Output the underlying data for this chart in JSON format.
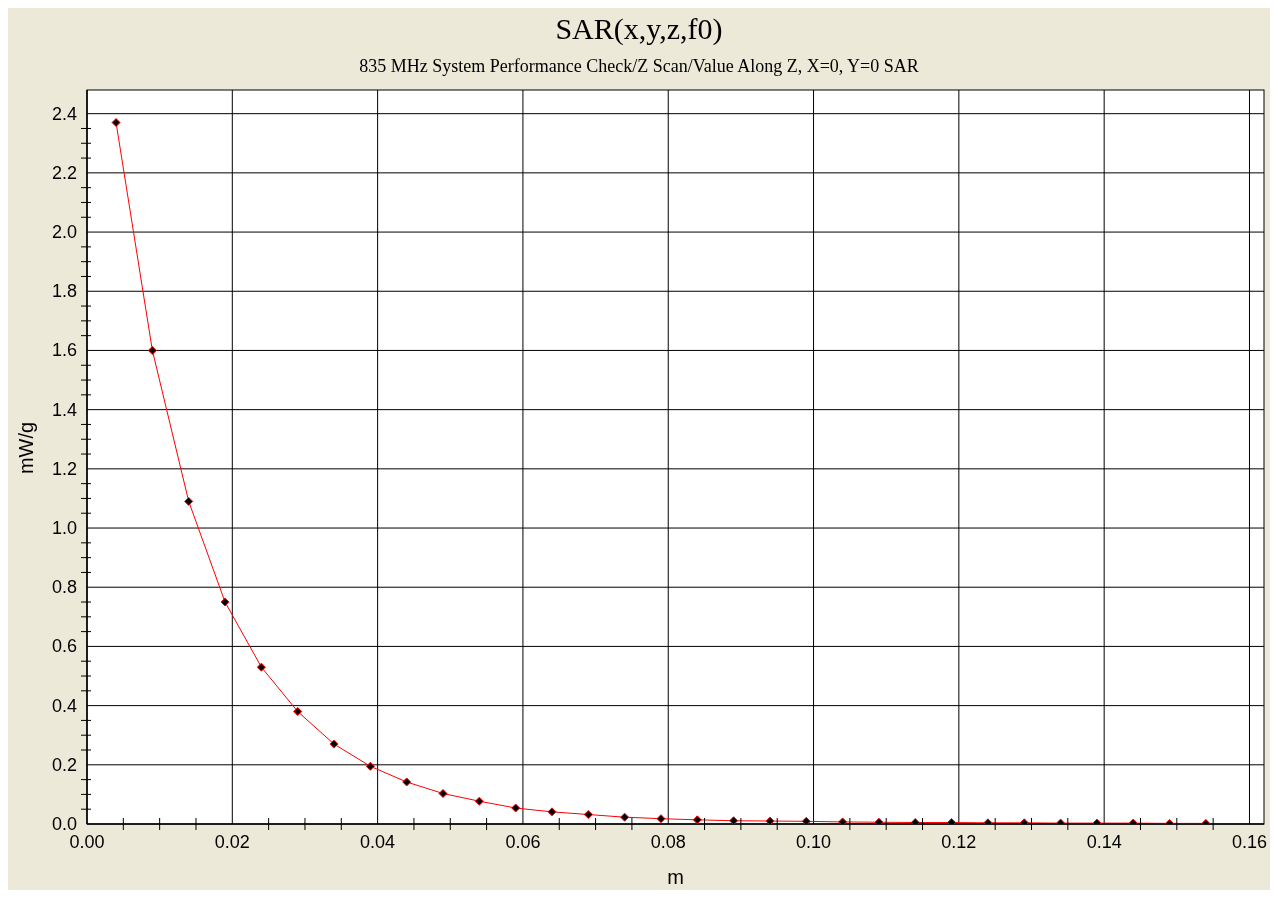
{
  "chart_data": {
    "type": "line",
    "title": "SAR(x,y,z,f0)",
    "subtitle": "835 MHz System Performance Check/Z Scan/Value Along Z, X=0, Y=0 SAR",
    "xlabel": "m",
    "ylabel": "mW/g",
    "x": [
      0.004,
      0.009,
      0.014,
      0.019,
      0.024,
      0.029,
      0.034,
      0.039,
      0.044,
      0.049,
      0.054,
      0.059,
      0.064,
      0.069,
      0.074,
      0.079,
      0.084,
      0.089,
      0.094,
      0.099,
      0.104,
      0.109,
      0.114,
      0.119,
      0.124,
      0.129,
      0.134,
      0.139,
      0.144,
      0.149,
      0.154
    ],
    "series": [
      {
        "color": "#ff0000",
        "values": [
          2.37,
          1.6,
          1.09,
          0.75,
          0.53,
          0.38,
          0.27,
          0.195,
          0.142,
          0.103,
          0.077,
          0.054,
          0.041,
          0.032,
          0.023,
          0.018,
          0.014,
          0.011,
          0.01,
          0.009,
          0.007,
          0.006,
          0.005,
          0.005,
          0.004,
          0.004,
          0.003,
          0.003,
          0.003,
          0.002,
          0.002
        ]
      }
    ],
    "xlim": [
      0,
      0.162
    ],
    "ylim": [
      0,
      2.48
    ],
    "xticks": [
      {
        "value": 0,
        "label": "0.00"
      },
      {
        "value": 0.005,
        "label": null
      },
      {
        "value": 0.01,
        "label": null
      },
      {
        "value": 0.015,
        "label": null
      },
      {
        "value": 0.02,
        "label": "0.02"
      },
      {
        "value": 0.025,
        "label": null
      },
      {
        "value": 0.03,
        "label": null
      },
      {
        "value": 0.035,
        "label": null
      },
      {
        "value": 0.04,
        "label": "0.04"
      },
      {
        "value": 0.045,
        "label": null
      },
      {
        "value": 0.05,
        "label": null
      },
      {
        "value": 0.055,
        "label": null
      },
      {
        "value": 0.06,
        "label": "0.06"
      },
      {
        "value": 0.065,
        "label": null
      },
      {
        "value": 0.07,
        "label": null
      },
      {
        "value": 0.075,
        "label": null
      },
      {
        "value": 0.08,
        "label": "0.08"
      },
      {
        "value": 0.085,
        "label": null
      },
      {
        "value": 0.09,
        "label": null
      },
      {
        "value": 0.095,
        "label": null
      },
      {
        "value": 0.1,
        "label": "0.10"
      },
      {
        "value": 0.105,
        "label": null
      },
      {
        "value": 0.11,
        "label": null
      },
      {
        "value": 0.115,
        "label": null
      },
      {
        "value": 0.12,
        "label": "0.12"
      },
      {
        "value": 0.125,
        "label": null
      },
      {
        "value": 0.13,
        "label": null
      },
      {
        "value": 0.135,
        "label": null
      },
      {
        "value": 0.14,
        "label": "0.14"
      },
      {
        "value": 0.145,
        "label": null
      },
      {
        "value": 0.15,
        "label": null
      },
      {
        "value": 0.155,
        "label": null
      },
      {
        "value": 0.16,
        "label": "0.16"
      }
    ],
    "yticks": [
      {
        "value": 0,
        "label": "0.0"
      },
      {
        "value": 0.05,
        "label": null
      },
      {
        "value": 0.1,
        "label": null
      },
      {
        "value": 0.15,
        "label": null
      },
      0.2,
      {
        "value": 0.25,
        "label": null
      },
      {
        "value": 0.3,
        "label": null
      },
      {
        "value": 0.35,
        "label": null
      },
      0.4,
      {
        "value": 0.45,
        "label": null
      },
      {
        "value": 0.5,
        "label": null
      },
      {
        "value": 0.55,
        "label": null
      },
      0.6,
      {
        "value": 0.65,
        "label": null
      },
      {
        "value": 0.7,
        "label": null
      },
      {
        "value": 0.75,
        "label": null
      },
      0.8,
      {
        "value": 0.85,
        "label": null
      },
      {
        "value": 0.9,
        "label": null
      },
      {
        "value": 0.95,
        "label": null
      },
      {
        "value": 1.0,
        "label": "1.0"
      },
      {
        "value": 1.05,
        "label": null
      },
      {
        "value": 1.1,
        "label": null
      },
      {
        "value": 1.15,
        "label": null
      },
      1.2,
      {
        "value": 1.25,
        "label": null
      },
      {
        "value": 1.3,
        "label": null
      },
      {
        "value": 1.35,
        "label": null
      },
      1.4,
      {
        "value": 1.45,
        "label": null
      },
      {
        "value": 1.5,
        "label": null
      },
      {
        "value": 1.55,
        "label": null
      },
      1.6,
      {
        "value": 1.65,
        "label": null
      },
      {
        "value": 1.7,
        "label": null
      },
      {
        "value": 1.75,
        "label": null
      },
      1.8,
      {
        "value": 1.85,
        "label": null
      },
      {
        "value": 1.9,
        "label": null
      },
      {
        "value": 1.95,
        "label": null
      },
      {
        "value": 2.0,
        "label": "2.0"
      },
      {
        "value": 2.05,
        "label": null
      },
      {
        "value": 2.1,
        "label": null
      },
      {
        "value": 2.15,
        "label": null
      },
      2.2,
      {
        "value": 2.25,
        "label": null
      },
      {
        "value": 2.3,
        "label": null
      },
      {
        "value": 2.35,
        "label": null
      },
      2.4
    ],
    "grid": true,
    "marker": "diamond",
    "line_style": "solid"
  }
}
